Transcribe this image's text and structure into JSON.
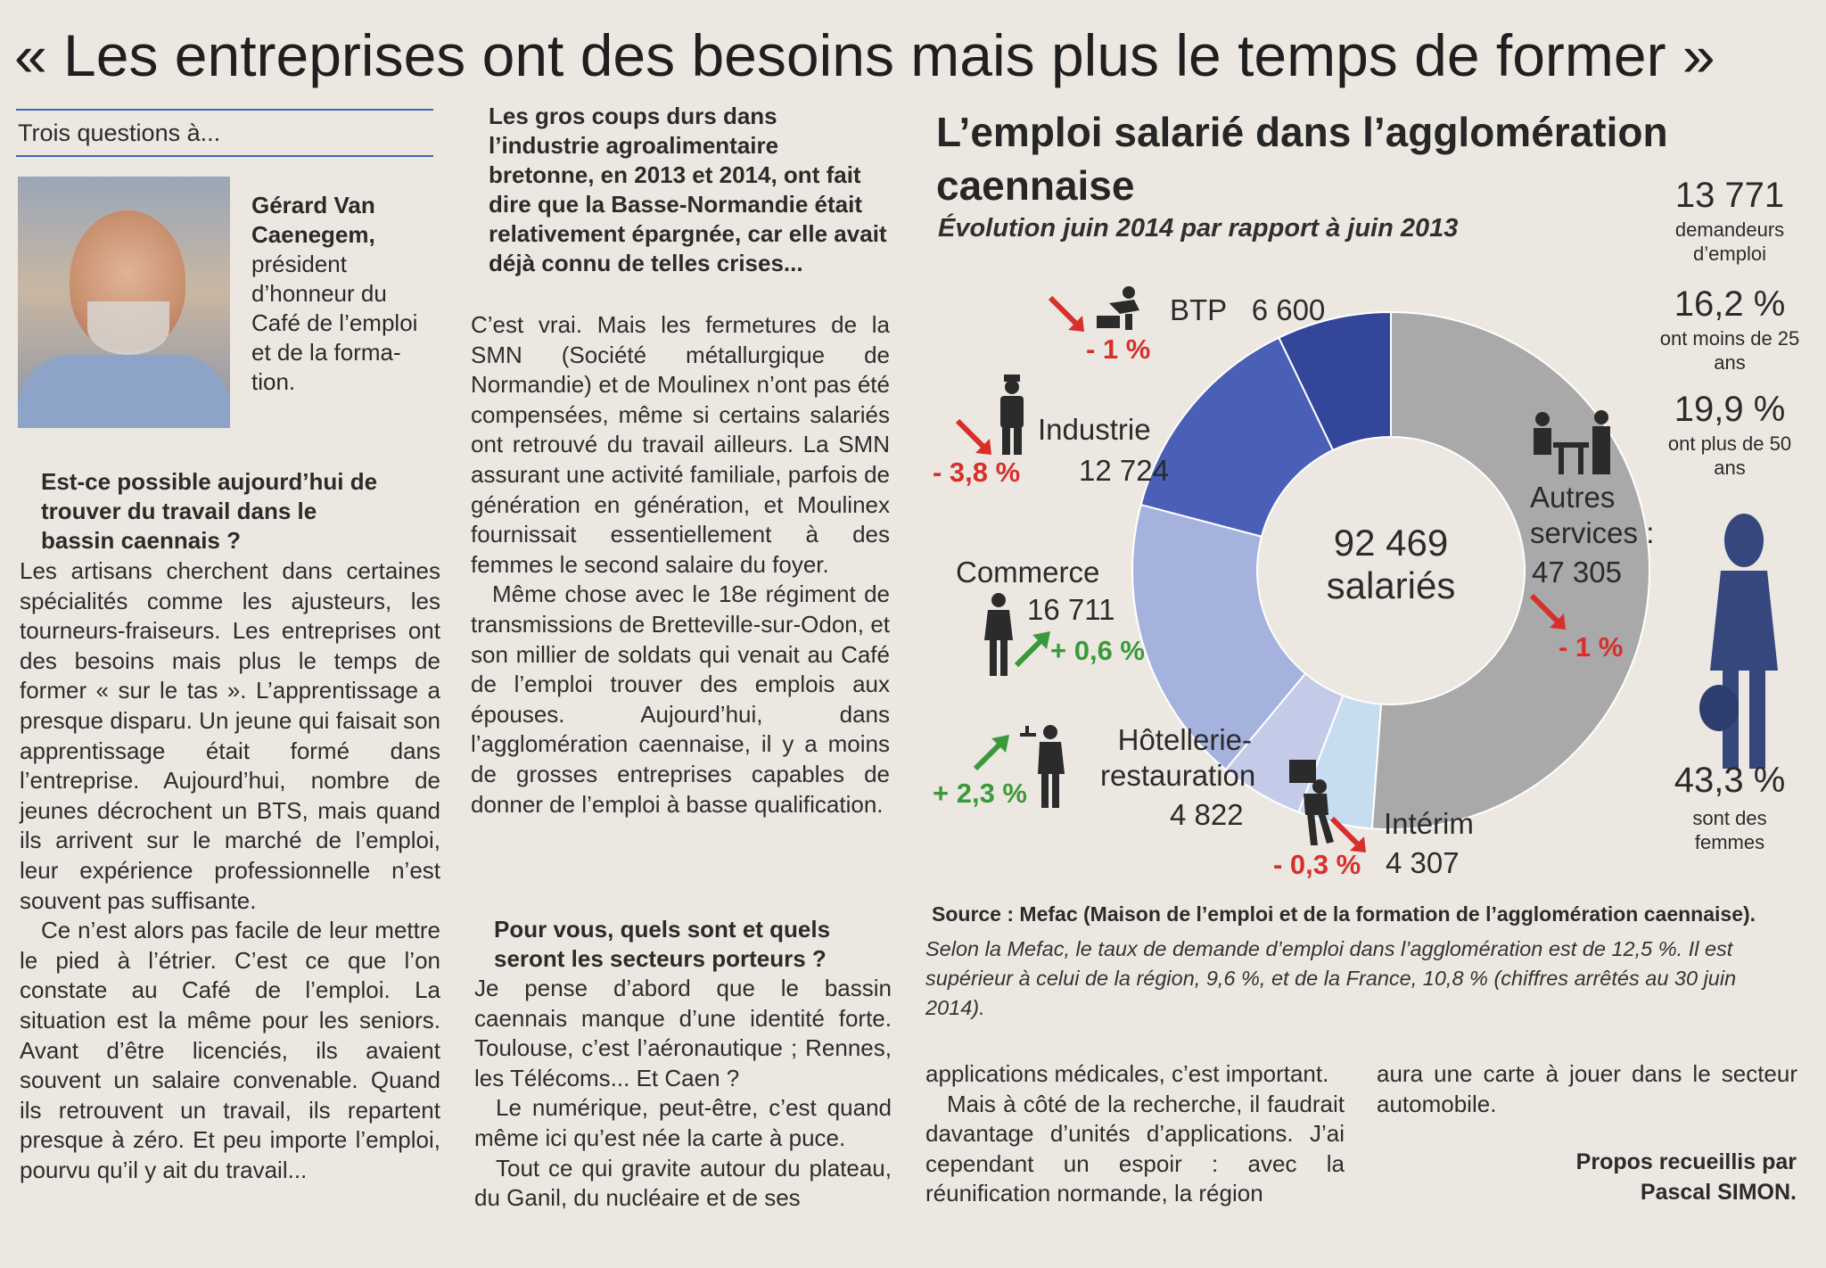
{
  "headline": "« Les entreprises ont des besoins mais plus le temps de former »",
  "kicker": "Trois questions à...",
  "bio": {
    "name": "Gérard Van Caenegem,",
    "role": "président d’honneur du Café de l’emploi et de la forma-tion."
  },
  "q1": "Est-ce possible aujourd’hui de trouver du travail dans le bassin caennais ?",
  "a1": [
    "Les artisans cherchent dans certaines spécialités comme les ajusteurs, les tourneurs-fraiseurs. Les entreprises ont des besoins mais plus le temps de former « sur le tas ». L’apprentissage a presque disparu. Un jeune qui faisait son apprentissage était formé dans l’entreprise. Aujourd’hui, nombre de jeunes décrochent un BTS, mais quand ils arrivent sur le marché de l’emploi, leur expérience professionnelle n’est souvent pas suffisante.",
    "Ce n’est alors pas facile de leur mettre le pied à l’étrier. C’est ce que l’on constate au Café de l’emploi. La situation est la même pour les seniors. Avant d’être licenciés, ils avaient souvent un salaire convenable. Quand ils retrouvent un travail, ils repartent presque à zéro. Et peu importe l’emploi, pourvu qu’il y ait du travail..."
  ],
  "q2": "Les gros coups durs dans l’industrie agroalimentaire bretonne, en 2013 et 2014, ont fait dire que la Basse-Normandie était relativement épargnée, car elle avait déjà connu de telles crises...",
  "a2": [
    "C’est vrai. Mais les fermetures de la SMN (Société métallurgique de Normandie) et de Moulinex n’ont pas été compensées, même si certains salariés ont retrouvé du travail ailleurs. La SMN assurant une activité familiale, parfois de génération en génération, et Moulinex fournissait essentiellement à des femmes le second salaire du foyer.",
    "Même chose avec le 18e régiment de transmissions de Bretteville-sur-Odon, et son millier de soldats qui venait au Café de l’emploi trouver des emplois aux épouses. Aujourd’hui, dans l’agglomération caennaise, il y a moins de grosses entreprises capables de donner de l’emploi à basse qualification."
  ],
  "q3": "Pour vous, quels sont et quels seront les secteurs porteurs ?",
  "a3": [
    "Je pense d’abord que le bassin caennais manque d’une identité forte. Toulouse, c’est l’aéronautique ; Rennes, les Télécoms... Et Caen ?",
    "Le numérique, peut-être, c’est quand même ici qu’est née la carte à puce.",
    "Tout ce qui gravite autour du plateau, du Ganil, du nucléaire et de ses"
  ],
  "a3_cont": [
    "applications médicales, c’est important.",
    "Mais à côté de la recherche, il faudrait davantage d’unités d’applications. J’ai cependant un espoir : avec la réunification normande, la région"
  ],
  "a3_end": "aura une carte à jouer dans le secteur automobile.",
  "credit_line1": "Propos recueillis par",
  "credit_line2": "Pascal SIMON.",
  "infographic": {
    "title": "L’emploi salarié dans l’agglomération caennaise",
    "subtitle": "Évolution juin 2014 par rapport à juin 2013",
    "total_number": "92 469",
    "total_label": "salariés",
    "source": "Source : Mefac (Maison de l’emploi et de la formation de l’agglomération caennaise).",
    "note": "Selon la Mefac, le taux de demande d’emploi dans l’agglomération est de 12,5 %. Il est supérieur à celui de la région, 9,6 %, et de la France, 10,8 % (chiffres arrêtés au 30 juin 2014).",
    "stats": [
      {
        "big": "13 771",
        "small": "demandeurs d’emploi"
      },
      {
        "big": "16,2 %",
        "small": "ont moins de 25 ans"
      },
      {
        "big": "19,9 %",
        "small": "ont plus de 50 ans"
      },
      {
        "big": "43,3 %",
        "small": "sont des femmes"
      }
    ],
    "labels": {
      "btp_name": "BTP",
      "btp_value": "6 600",
      "btp_delta": "- 1 %",
      "industrie_name": "Industrie",
      "industrie_value": "12 724",
      "industrie_delta": "- 3,8 %",
      "commerce_name": "Commerce",
      "commerce_value": "16 711",
      "commerce_delta": "+ 0,6 %",
      "hotel_name": "Hôtellerie-restauration",
      "hotel_value": "4 822",
      "hotel_delta": "+ 2,3 %",
      "interim_name": "Intérim",
      "interim_value": "4 307",
      "interim_delta": "- 0,3 %",
      "autres_name": "Autres services :",
      "autres_value": "47 305",
      "autres_delta": "- 1 %"
    }
  },
  "chart_data": {
    "type": "pie",
    "title": "L’emploi salarié dans l’agglomération caennaise",
    "subtitle": "Évolution juin 2014 par rapport à juin 2013",
    "center_label": "92 469 salariés",
    "categories": [
      "BTP",
      "Industrie",
      "Commerce",
      "Hôtellerie-restauration",
      "Intérim",
      "Autres services"
    ],
    "values": [
      6600,
      12724,
      16711,
      4822,
      4307,
      47305
    ],
    "changes": [
      "- 1 %",
      "- 3,8 %",
      "+ 0,6 %",
      "+ 2,3 %",
      "- 0,3 %",
      "- 1 %"
    ],
    "colors": [
      "#33469a",
      "#4a5fb6",
      "#a6b2de",
      "#c4cbe8",
      "#c7dcee",
      "#a9a9a9"
    ]
  }
}
